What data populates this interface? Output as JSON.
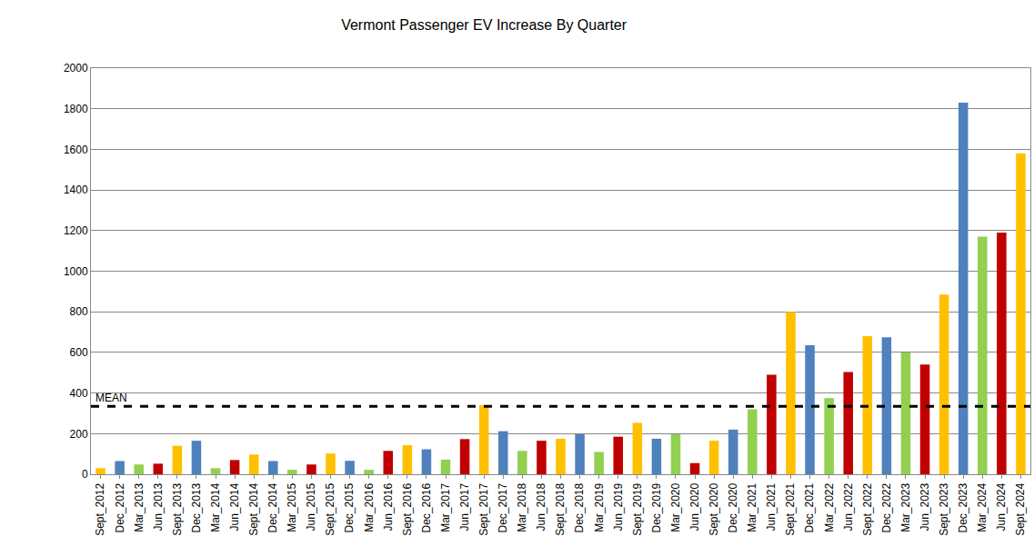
{
  "chart_data": {
    "type": "bar",
    "title": "Vermont Passenger EV Increase By Quarter",
    "categories": [
      "Sept_2012",
      "Dec_2012",
      "Mar_2013",
      "Jun_2013",
      "Sept_2013",
      "Dec_2013",
      "Mar_2014",
      "Jun_2014",
      "Sept_2014",
      "Dec_2014",
      "Mar_2015",
      "Jun_2015",
      "Sept_2015",
      "Dec_2015",
      "Mar_2016",
      "Jun_2016",
      "Sept_2016",
      "Dec_2016",
      "Mar_2017",
      "Jun_2017",
      "Sept_2017",
      "Dec_2017",
      "Mar_2018",
      "Jun_2018",
      "Sept_2018",
      "Dec_2018",
      "Mar_2019",
      "Jun_2019",
      "Sept_2019",
      "Dec_2019",
      "Mar_2020",
      "Jun_2020",
      "Sept_2020",
      "Dec_2020",
      "Mar_2021",
      "Jun_2021",
      "Sept_2021",
      "Dec_2021",
      "Mar_2022",
      "Jun_2022",
      "Sept_2022",
      "Dec_2022",
      "Mar_2023",
      "Jun_2023",
      "Sept_2023",
      "Dec_2023",
      "Mar_2024",
      "Jun_2024",
      "Sept_2024"
    ],
    "values": [
      30,
      65,
      48,
      52,
      140,
      165,
      30,
      70,
      97,
      65,
      22,
      48,
      102,
      66,
      22,
      115,
      143,
      123,
      72,
      173,
      340,
      212,
      115,
      165,
      175,
      197,
      110,
      185,
      253,
      175,
      197,
      55,
      165,
      220,
      320,
      490,
      800,
      635,
      375,
      503,
      680,
      675,
      600,
      540,
      885,
      1830,
      1170,
      1190,
      1580
    ],
    "colors": [
      "#FFC000",
      "#4F81BD",
      "#92D050",
      "#C00000",
      "#FFC000",
      "#4F81BD",
      "#92D050",
      "#C00000",
      "#FFC000",
      "#4F81BD",
      "#92D050",
      "#C00000",
      "#FFC000",
      "#4F81BD",
      "#92D050",
      "#C00000",
      "#FFC000",
      "#4F81BD",
      "#92D050",
      "#C00000",
      "#FFC000",
      "#4F81BD",
      "#92D050",
      "#C00000",
      "#FFC000",
      "#4F81BD",
      "#92D050",
      "#C00000",
      "#FFC000",
      "#4F81BD",
      "#92D050",
      "#C00000",
      "#FFC000",
      "#4F81BD",
      "#92D050",
      "#C00000",
      "#FFC000",
      "#4F81BD",
      "#92D050",
      "#C00000",
      "#FFC000",
      "#4F81BD",
      "#92D050",
      "#C00000",
      "#FFC000",
      "#4F81BD",
      "#92D050",
      "#C00000",
      "#FFC000"
    ],
    "mean": {
      "label": "MEAN",
      "value": 335
    },
    "ylim": [
      0,
      2000
    ],
    "yticks": [
      0,
      200,
      400,
      600,
      800,
      1000,
      1200,
      1400,
      1600,
      1800,
      2000
    ],
    "grid": true
  }
}
